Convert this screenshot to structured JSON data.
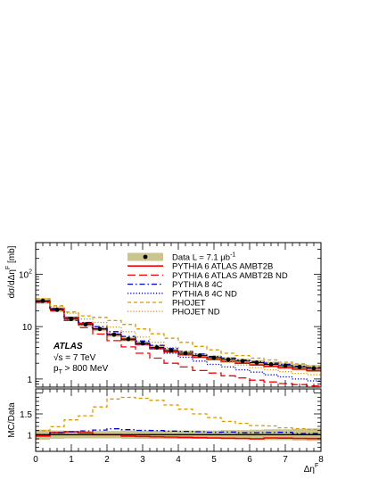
{
  "chart_data": {
    "type": "line",
    "x_edges": [
      0,
      0.4,
      0.8,
      1.2,
      1.6,
      2.0,
      2.4,
      2.8,
      3.2,
      3.6,
      4.0,
      4.4,
      4.8,
      5.2,
      5.6,
      6.0,
      6.4,
      6.8,
      7.2,
      7.6,
      8.0
    ],
    "xlabel": "Δη^F",
    "ylabel": "dσ/dΔη^F [mb]",
    "xlim": [
      0,
      8
    ],
    "ylim": [
      0.7,
      400
    ],
    "yscale": "log",
    "x_ticks": [
      "0",
      "1",
      "2",
      "3",
      "4",
      "5",
      "6",
      "7",
      "8"
    ],
    "y_ticks": [
      "1",
      "10",
      "10^2"
    ],
    "legend_position": "top-right",
    "legend": [
      {
        "label": "Data L = 7.1 μb^-1",
        "style": "data-band",
        "color": "#000000",
        "band": "#c9c58c"
      },
      {
        "label": "PYTHIA 6 ATLAS AMBT2B",
        "style": "solid",
        "color": "#ff0000"
      },
      {
        "label": "PYTHIA 6 ATLAS AMBT2B ND",
        "style": "longdash",
        "color": "#ff0000"
      },
      {
        "label": "PYTHIA 8 4C",
        "style": "dashdot",
        "color": "#0000cc"
      },
      {
        "label": "PYTHIA 8 4C ND",
        "style": "dotted",
        "color": "#0000cc"
      },
      {
        "label": "PHOJET",
        "style": "dashed",
        "color": "#d99a00"
      },
      {
        "label": "PHOJET ND",
        "style": "dotted",
        "color": "#d99a00"
      }
    ],
    "annotations": {
      "experiment": "ATLAS",
      "energy": "√s = 7 TeV",
      "pt_cut": "p_T > 800 MeV"
    },
    "data": {
      "x": [
        0.2,
        0.6,
        1.0,
        1.4,
        1.8,
        2.2,
        2.6,
        3.0,
        3.4,
        3.8,
        4.2,
        4.6,
        5.0,
        5.4,
        5.8,
        6.2,
        6.6,
        7.0,
        7.4,
        7.8
      ],
      "y": [
        31,
        21,
        14,
        11,
        9,
        7,
        5.8,
        4.8,
        4.0,
        3.5,
        3.1,
        2.8,
        2.55,
        2.35,
        2.2,
        2.05,
        1.9,
        1.8,
        1.7,
        1.6
      ],
      "band_rel": [
        0.12,
        0.1,
        0.09,
        0.09,
        0.09,
        0.09,
        0.1,
        0.1,
        0.1,
        0.1,
        0.1,
        0.1,
        0.1,
        0.11,
        0.11,
        0.12,
        0.13,
        0.13,
        0.14,
        0.15
      ]
    },
    "series": [
      {
        "name": "PYTHIA 6 ATLAS AMBT2B",
        "values": [
          30,
          22,
          15,
          11.5,
          9,
          7,
          5.6,
          4.6,
          3.8,
          3.3,
          2.9,
          2.6,
          2.35,
          2.15,
          2.0,
          1.85,
          1.75,
          1.65,
          1.55,
          1.45
        ]
      },
      {
        "name": "PYTHIA 6 ATLAS AMBT2B ND",
        "values": [
          29,
          20,
          13,
          9.5,
          7.2,
          5.4,
          4.1,
          3.1,
          2.5,
          2.0,
          1.7,
          1.45,
          1.3,
          1.15,
          1.05,
          0.95,
          0.88,
          0.82,
          0.78,
          0.74
        ]
      },
      {
        "name": "PYTHIA 8 4C",
        "values": [
          31,
          22,
          15,
          12,
          10,
          8,
          6.5,
          5.3,
          4.4,
          3.8,
          3.35,
          3.0,
          2.7,
          2.5,
          2.3,
          2.15,
          2.0,
          1.9,
          1.75,
          1.65
        ]
      },
      {
        "name": "PYTHIA 8 4C ND",
        "values": [
          30,
          21,
          14,
          11,
          9,
          7.2,
          5.8,
          4.6,
          3.8,
          3.1,
          2.6,
          2.2,
          1.9,
          1.7,
          1.5,
          1.35,
          1.2,
          1.1,
          1.0,
          0.92
        ]
      },
      {
        "name": "PHOJET",
        "values": [
          34,
          25,
          19,
          16,
          15,
          13,
          11,
          9,
          7.3,
          6.0,
          5.0,
          4.2,
          3.6,
          3.1,
          2.8,
          2.5,
          2.3,
          2.1,
          1.95,
          1.8
        ]
      },
      {
        "name": "PHOJET ND",
        "values": [
          34,
          24,
          18,
          14,
          12,
          9.8,
          8,
          6.3,
          5.0,
          4.0,
          3.3,
          2.8,
          2.4,
          2.1,
          1.85,
          1.65,
          1.5,
          1.38,
          1.28,
          1.2
        ]
      }
    ],
    "ratio": {
      "ylabel": "MC/Data",
      "ylim": [
        0.6,
        2.1
      ],
      "y_ticks": [
        "1",
        "1.5"
      ]
    }
  }
}
